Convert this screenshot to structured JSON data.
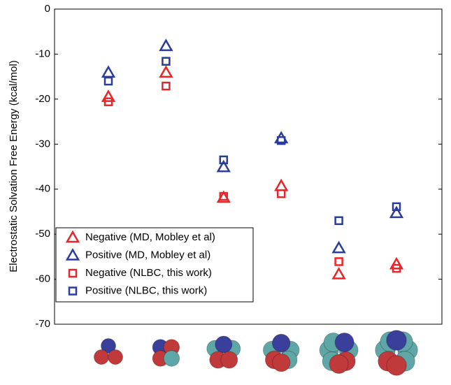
{
  "chart_data": {
    "type": "scatter",
    "y_label": "Electrostatic Solvation Free Energy (kcal/mol)",
    "categories": [
      null,
      null,
      null,
      null,
      null,
      null
    ],
    "series": [
      {
        "name": "Negative (MD, Mobley et al)",
        "color": "#e8262a",
        "marker": "triangle",
        "values": [
          -19.5,
          -14.1,
          -41.9,
          -39.3,
          -58.9,
          -56.7
        ]
      },
      {
        "name": "Positive (MD, Mobley et al)",
        "color": "#2b3d9b",
        "marker": "triangle",
        "values": [
          -14.1,
          -8.2,
          -35.1,
          -28.7,
          -53.1,
          -45.3
        ]
      },
      {
        "name": "Negative (NLBC, this work)",
        "color": "#e8262a",
        "marker": "square",
        "values": [
          -20.6,
          -17.1,
          -41.6,
          -41.0,
          -56.1,
          -57.6
        ]
      },
      {
        "name": "Positive (NLBC, this work)",
        "color": "#2b3d9b",
        "marker": "square",
        "values": [
          -16.0,
          -11.6,
          -33.5,
          -29.2,
          -47.0,
          -43.9
        ]
      }
    ],
    "ylim": [
      -70,
      0
    ],
    "yticks": [
      0,
      -10,
      -20,
      -30,
      -40,
      -50,
      -60,
      -70
    ],
    "legend": "lower left"
  }
}
